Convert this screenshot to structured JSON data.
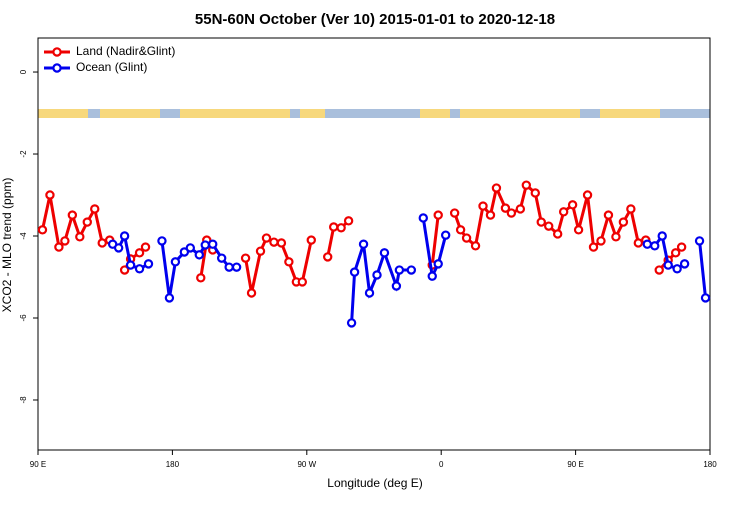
{
  "chart_data": {
    "type": "line",
    "title": "55N-60N October (Ver 10)   2015-01-01 to 2020-12-18",
    "x_label": "Longitude (deg E)",
    "y_label": "XCO2 - MLO trend (ppm)",
    "xlim": [
      90,
      540
    ],
    "ylim": [
      -9.22,
      0.83
    ],
    "xticks": [
      {
        "value": 90,
        "label": "90 E"
      },
      180,
      {
        "value": 270,
        "label": "90 W"
      },
      {
        "value": 360,
        "label": "0"
      },
      {
        "value": 450,
        "label": "90 E"
      },
      {
        "value": 540,
        "label": "180"
      }
    ],
    "yticks": [
      0,
      -2,
      -4,
      -6,
      -8
    ],
    "legend": "top-left",
    "series": [
      {
        "name": "Land (Nadir&Glint)",
        "color": "#ee0000",
        "x": [
          93,
          98,
          104,
          108,
          113,
          118,
          123,
          128,
          133,
          138,
          null,
          148,
          152,
          158,
          162,
          null,
          199,
          203,
          207,
          null,
          229,
          233,
          239,
          243,
          248,
          253,
          258,
          263,
          267,
          273,
          null,
          284,
          288,
          293,
          298,
          null,
          354,
          358,
          null,
          369,
          373,
          377,
          383,
          388,
          393,
          397,
          403,
          407,
          413,
          417,
          423,
          427,
          432,
          438,
          442,
          448,
          452,
          458,
          462,
          467,
          472,
          477,
          482,
          487,
          492,
          497,
          null,
          506,
          512,
          517,
          521
        ],
        "values": [
          -3.85,
          -3.0,
          -4.27,
          -4.12,
          -3.49,
          -4.02,
          -3.66,
          -3.34,
          -4.17,
          -4.1,
          null,
          -4.83,
          -4.56,
          -4.41,
          -4.27,
          null,
          -5.02,
          -4.1,
          -4.34,
          null,
          -4.54,
          -5.39,
          -4.37,
          -4.05,
          -4.15,
          -4.17,
          -4.63,
          -5.12,
          -5.12,
          -4.1,
          null,
          -4.51,
          -3.78,
          -3.8,
          -3.63,
          null,
          -4.71,
          -3.49,
          null,
          -3.44,
          -3.85,
          -4.05,
          -4.24,
          -3.27,
          -3.49,
          -2.83,
          -3.32,
          -3.44,
          -3.34,
          -2.76,
          -2.95,
          -3.66,
          -3.76,
          -3.95,
          -3.41,
          -3.24,
          -3.85,
          -3.0,
          -4.27,
          -4.12,
          -3.49,
          -4.02,
          -3.66,
          -3.34,
          -4.17,
          -4.1,
          null,
          -4.83,
          -4.59,
          -4.41,
          -4.27
        ]
      },
      {
        "name": "Ocean (Glint)",
        "color": "#0000ee",
        "x": [
          140,
          144,
          148,
          152,
          158,
          164,
          null,
          173,
          178,
          182,
          188,
          192,
          198,
          202,
          207,
          213,
          218,
          223,
          null,
          300,
          302,
          308,
          312,
          317,
          322,
          330,
          332,
          340,
          null,
          348,
          354,
          358,
          363,
          null,
          498,
          503,
          508,
          512,
          518,
          523,
          null,
          533,
          537
        ],
        "values": [
          -4.2,
          -4.29,
          -4.0,
          -4.71,
          -4.8,
          -4.68,
          null,
          -4.12,
          -5.51,
          -4.63,
          -4.39,
          -4.29,
          -4.46,
          -4.22,
          -4.2,
          -4.54,
          -4.76,
          -4.76,
          null,
          -6.12,
          -4.88,
          -4.2,
          -5.39,
          -4.95,
          -4.41,
          -5.22,
          -4.83,
          -4.83,
          null,
          -3.56,
          -4.98,
          -4.68,
          -3.98,
          null,
          -4.2,
          -4.24,
          -4.0,
          -4.71,
          -4.8,
          -4.68,
          null,
          -4.12,
          -5.51
        ]
      }
    ]
  }
}
